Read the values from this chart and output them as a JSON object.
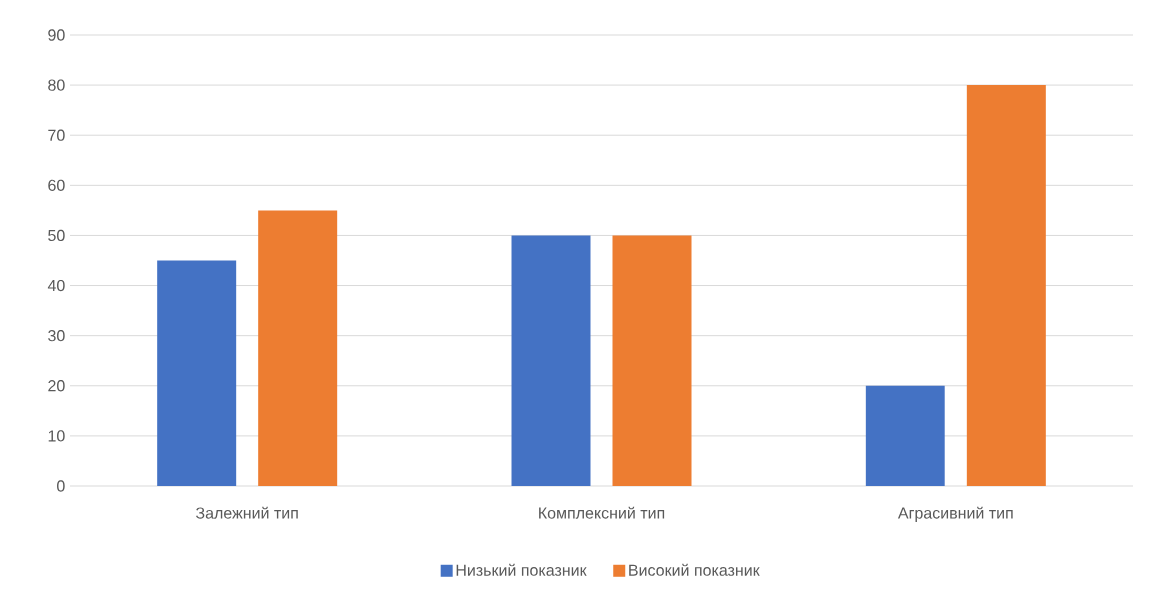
{
  "chart_data": {
    "type": "bar",
    "categories": [
      "Залежний тип",
      "Комплексний тип",
      "Аграсивний тип"
    ],
    "series": [
      {
        "name": "Низький показник",
        "color": "#4472c4",
        "values": [
          45,
          50,
          20
        ]
      },
      {
        "name": "Високий показник",
        "color": "#ed7d31",
        "values": [
          55,
          50,
          80
        ]
      }
    ],
    "ylim": [
      0,
      90
    ],
    "yticks": [
      0,
      10,
      20,
      30,
      40,
      50,
      60,
      70,
      80,
      90
    ],
    "grid": "y",
    "legend": "bottom"
  }
}
